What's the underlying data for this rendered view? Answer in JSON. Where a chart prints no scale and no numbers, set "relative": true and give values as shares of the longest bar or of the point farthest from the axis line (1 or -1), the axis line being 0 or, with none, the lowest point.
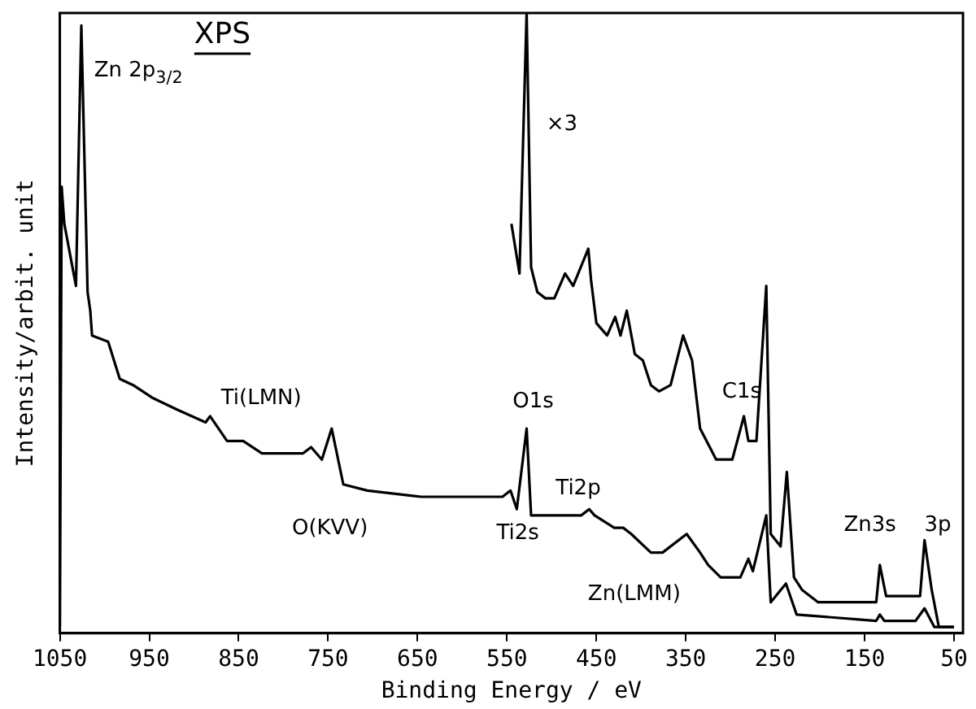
{
  "chart_data": {
    "type": "line",
    "title": "XPS",
    "xlabel": "Binding Energy / eV",
    "ylabel": "Intensity/arbit. unit",
    "relative": true,
    "xlim": [
      1050,
      40
    ],
    "xticks": [
      1050,
      950,
      850,
      750,
      650,
      550,
      450,
      350,
      250,
      150,
      50
    ],
    "grid": false,
    "legend": false,
    "marker": "none",
    "line_style": "solid",
    "series": [
      {
        "color": "#000000",
        "x": [
          1050,
          1048,
          1045,
          1032,
          1026,
          1019,
          1016,
          1014,
          996,
          983,
          968,
          947,
          918,
          887,
          882,
          863,
          845,
          824,
          778,
          769,
          757,
          746,
          733,
          706,
          646,
          579,
          555,
          546,
          539,
          528,
          523,
          507,
          485,
          467,
          458,
          452,
          430,
          420,
          411,
          389,
          376,
          349,
          334,
          325,
          311,
          289,
          280,
          275,
          260,
          255,
          238,
          226,
          137,
          133,
          128,
          93,
          83,
          72,
          50
        ],
        "values": [
          0.01,
          0.72,
          0.66,
          0.56,
          0.98,
          0.55,
          0.52,
          0.48,
          0.47,
          0.41,
          0.4,
          0.38,
          0.36,
          0.34,
          0.35,
          0.31,
          0.31,
          0.29,
          0.29,
          0.3,
          0.28,
          0.33,
          0.24,
          0.23,
          0.22,
          0.22,
          0.22,
          0.23,
          0.2,
          0.33,
          0.19,
          0.19,
          0.19,
          0.19,
          0.2,
          0.19,
          0.17,
          0.17,
          0.16,
          0.13,
          0.13,
          0.16,
          0.13,
          0.11,
          0.09,
          0.09,
          0.12,
          0.1,
          0.19,
          0.05,
          0.08,
          0.03,
          0.02,
          0.03,
          0.02,
          0.02,
          0.04,
          0.01,
          0.01
        ]
      },
      {
        "color": "#000000",
        "x": [
          545,
          536,
          528,
          523,
          516,
          507,
          497,
          485,
          476,
          459,
          456,
          450,
          438,
          429,
          423,
          416,
          407,
          398,
          389,
          380,
          367,
          353,
          343,
          334,
          316,
          298,
          285,
          280,
          271,
          260,
          255,
          244,
          237,
          229,
          220,
          202,
          137,
          133,
          126,
          93,
          88,
          83,
          75,
          67,
          50
        ],
        "values": [
          0.66,
          0.58,
          1.0,
          0.59,
          0.55,
          0.54,
          0.54,
          0.58,
          0.56,
          0.62,
          0.57,
          0.5,
          0.48,
          0.51,
          0.48,
          0.52,
          0.45,
          0.44,
          0.4,
          0.39,
          0.4,
          0.48,
          0.44,
          0.33,
          0.28,
          0.28,
          0.35,
          0.31,
          0.31,
          0.56,
          0.16,
          0.14,
          0.26,
          0.09,
          0.07,
          0.05,
          0.05,
          0.11,
          0.06,
          0.06,
          0.06,
          0.15,
          0.07,
          0.01,
          0.01
        ]
      }
    ],
    "annotations": [
      "Zn 2p$_{3/2}$",
      "×3",
      "Ti(LMN)",
      "O(KVV)",
      "O1s",
      "Ti2s",
      "Ti2p",
      "C1s",
      "Zn(LMM)",
      "Zn3s",
      "3p"
    ]
  }
}
